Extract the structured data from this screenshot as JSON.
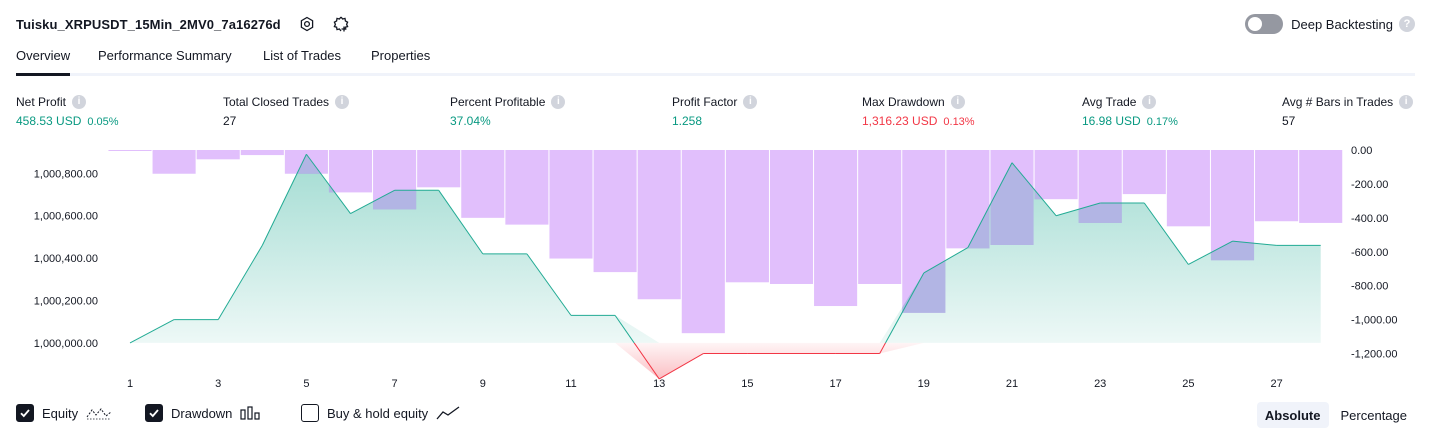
{
  "header": {
    "strategy_title": "Tuisku_XRPUSDT_15Min_2MV0_7a16276d",
    "deep_backtesting_label": "Deep Backtesting",
    "help_glyph": "?"
  },
  "tabs": [
    {
      "label": "Overview",
      "active": true
    },
    {
      "label": "Performance Summary",
      "active": false
    },
    {
      "label": "List of Trades",
      "active": false
    },
    {
      "label": "Properties",
      "active": false
    }
  ],
  "stats": [
    {
      "label": "Net Profit",
      "value": "458.53 USD",
      "pct": "0.05%",
      "tone": "green"
    },
    {
      "label": "Total Closed Trades",
      "value": "27",
      "pct": "",
      "tone": "dark"
    },
    {
      "label": "Percent Profitable",
      "value": "37.04%",
      "pct": "",
      "tone": "green"
    },
    {
      "label": "Profit Factor",
      "value": "1.258",
      "pct": "",
      "tone": "green"
    },
    {
      "label": "Max Drawdown",
      "value": "1,316.23 USD",
      "pct": "0.13%",
      "tone": "red"
    },
    {
      "label": "Avg Trade",
      "value": "16.98 USD",
      "pct": "0.17%",
      "tone": "green"
    },
    {
      "label": "Avg # Bars in Trades",
      "value": "57",
      "pct": "",
      "tone": "dark"
    }
  ],
  "chart_data": {
    "type": "line",
    "x": [
      1,
      2,
      3,
      4,
      5,
      6,
      7,
      8,
      9,
      10,
      11,
      12,
      13,
      14,
      15,
      16,
      17,
      18,
      19,
      20,
      21,
      22,
      23,
      24,
      25,
      26,
      27,
      28
    ],
    "x_tick_labels": [
      "1",
      "3",
      "5",
      "7",
      "9",
      "11",
      "13",
      "15",
      "17",
      "19",
      "21",
      "23",
      "25",
      "27"
    ],
    "left_axis": {
      "ticks": [
        "1,000,000.00",
        "1,000,200.00",
        "1,000,400.00",
        "1,000,600.00",
        "1,000,800.00"
      ],
      "ylim": [
        999910,
        1000910
      ]
    },
    "right_axis": {
      "ticks": [
        "0.00",
        "-200.00",
        "-400.00",
        "-600.00",
        "-800.00",
        "-1,000.00",
        "-1,200.00"
      ],
      "ylim": [
        -1250,
        0
      ]
    },
    "series": [
      {
        "kind": "equity",
        "values": [
          1000000,
          1000110,
          1000110,
          1000460,
          1000890,
          1000610,
          1000720,
          1000720,
          1000420,
          1000420,
          1000130,
          1000130,
          999830,
          999950,
          999950,
          999950,
          999950,
          999950,
          1000330,
          1000450,
          1000850,
          1000600,
          1000660,
          1000660,
          1000370,
          1000480,
          1000460,
          1000460
        ]
      },
      {
        "kind": "drawdown",
        "values": [
          -2,
          -140,
          -55,
          -30,
          -140,
          -250,
          -350,
          -220,
          -400,
          -440,
          -640,
          -720,
          -880,
          -1080,
          -780,
          -790,
          -920,
          -790,
          -960,
          -580,
          -560,
          -290,
          -430,
          -260,
          -450,
          -650,
          -420,
          -430
        ]
      }
    ],
    "colors": {
      "equity_line": "#22ab94",
      "equity_fill": "#22ab94",
      "below_line": "#f23645",
      "drawdown_bar": "#e1bffc",
      "overlap": "#b2b5e4"
    }
  },
  "footer": {
    "equity_label": "Equity",
    "drawdown_label": "Drawdown",
    "buy_hold_label": "Buy & hold equity",
    "absolute_label": "Absolute",
    "percentage_label": "Percentage",
    "equity_checked": true,
    "drawdown_checked": true,
    "buy_hold_checked": false
  }
}
